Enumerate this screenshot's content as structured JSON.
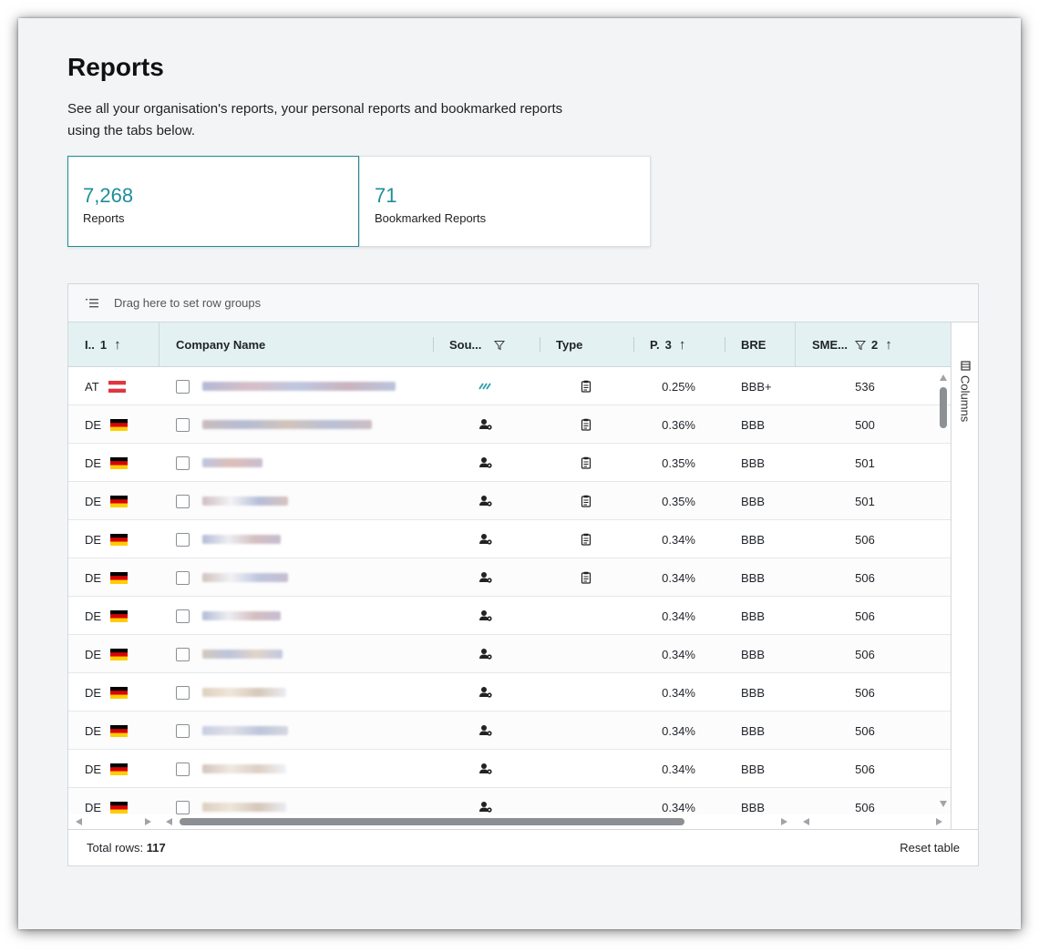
{
  "page": {
    "title": "Reports",
    "description": "See all your organisation's reports, your personal reports and bookmarked reports using the tabs below."
  },
  "tabs": [
    {
      "count": "7,268",
      "label": "Reports",
      "active": true
    },
    {
      "count": "71",
      "label": "Bookmarked Reports",
      "active": false
    }
  ],
  "grid": {
    "group_bar_text": "Drag here to set row groups",
    "columns": {
      "country": {
        "label": "I..",
        "sort_order": "1",
        "sort_icon": "arrow-up-icon"
      },
      "company": {
        "label": "Company Name"
      },
      "source": {
        "label": "Sou...",
        "filter_icon": "filter-icon"
      },
      "type": {
        "label": "Type"
      },
      "pd": {
        "label": "P.",
        "sort_order": "3",
        "sort_icon": "arrow-up-icon"
      },
      "bre": {
        "label": "BRE"
      },
      "sme": {
        "label": "SME...",
        "sort_order": "2",
        "filter_icon": "filter-icon",
        "sort_icon": "arrow-up-icon"
      }
    },
    "rows": [
      {
        "country": "AT",
        "flag": "austria-flag-icon",
        "source_icon": "stripes-icon",
        "type_icon": "clipboard-icon",
        "pd": "0.25%",
        "bre": "BBB+",
        "sme": "536"
      },
      {
        "country": "DE",
        "flag": "germany-flag-icon",
        "source_icon": "user-gear-icon",
        "type_icon": "clipboard-icon",
        "pd": "0.36%",
        "bre": "BBB",
        "sme": "500"
      },
      {
        "country": "DE",
        "flag": "germany-flag-icon",
        "source_icon": "user-gear-icon",
        "type_icon": "clipboard-icon",
        "pd": "0.35%",
        "bre": "BBB",
        "sme": "501"
      },
      {
        "country": "DE",
        "flag": "germany-flag-icon",
        "source_icon": "user-gear-icon",
        "type_icon": "clipboard-icon",
        "pd": "0.35%",
        "bre": "BBB",
        "sme": "501"
      },
      {
        "country": "DE",
        "flag": "germany-flag-icon",
        "source_icon": "user-gear-icon",
        "type_icon": "clipboard-icon",
        "pd": "0.34%",
        "bre": "BBB",
        "sme": "506"
      },
      {
        "country": "DE",
        "flag": "germany-flag-icon",
        "source_icon": "user-gear-icon",
        "type_icon": "clipboard-icon",
        "pd": "0.34%",
        "bre": "BBB",
        "sme": "506"
      },
      {
        "country": "DE",
        "flag": "germany-flag-icon",
        "source_icon": "user-gear-icon",
        "type_icon": "",
        "pd": "0.34%",
        "bre": "BBB",
        "sme": "506"
      },
      {
        "country": "DE",
        "flag": "germany-flag-icon",
        "source_icon": "user-gear-icon",
        "type_icon": "",
        "pd": "0.34%",
        "bre": "BBB",
        "sme": "506"
      },
      {
        "country": "DE",
        "flag": "germany-flag-icon",
        "source_icon": "user-gear-icon",
        "type_icon": "",
        "pd": "0.34%",
        "bre": "BBB",
        "sme": "506"
      },
      {
        "country": "DE",
        "flag": "germany-flag-icon",
        "source_icon": "user-gear-icon",
        "type_icon": "",
        "pd": "0.34%",
        "bre": "BBB",
        "sme": "506"
      },
      {
        "country": "DE",
        "flag": "germany-flag-icon",
        "source_icon": "user-gear-icon",
        "type_icon": "",
        "pd": "0.34%",
        "bre": "BBB",
        "sme": "506"
      },
      {
        "country": "DE",
        "flag": "germany-flag-icon",
        "source_icon": "user-gear-icon",
        "type_icon": "",
        "pd": "0.34%",
        "bre": "BBB",
        "sme": "506"
      }
    ],
    "side_panel": {
      "label": "Columns"
    },
    "footer": {
      "total_label": "Total rows:",
      "total_value": "117",
      "reset_label": "Reset table"
    }
  },
  "colors": {
    "accent": "#1d8f9b",
    "header_bg": "#e3f1f3",
    "austria_red": "#e0363f",
    "germany_black": "#000000",
    "germany_red": "#dd0000",
    "germany_gold": "#ffce00"
  }
}
